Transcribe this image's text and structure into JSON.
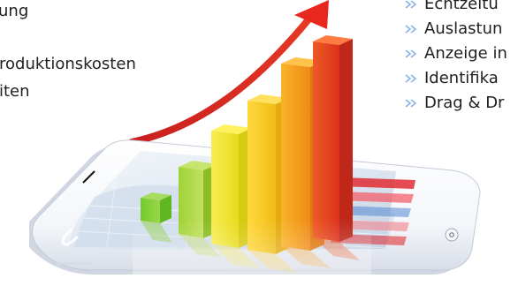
{
  "left_texts": [
    {
      "text": "ung"
    },
    {
      "text": "roduktionskosten"
    },
    {
      "text": "iten"
    }
  ],
  "right_list": [
    {
      "text": "Echtzeitü"
    },
    {
      "text": "Auslastun"
    },
    {
      "text": "Anzeige in"
    },
    {
      "text": "Identifika"
    },
    {
      "text": "Drag & Dr"
    }
  ],
  "icons": {
    "list_bullet": "double-arrow-icon",
    "trend_arrow": "rising-arrow-icon",
    "phone_button": "home-button-icon"
  },
  "colors": {
    "text": "#1f1f1f",
    "arrow_red": "#d9261c",
    "bullet_blue": "#8ab7e6",
    "bar_green": "#7ccc2c",
    "bar_yellow": "#f4e31a",
    "bar_orange": "#f39c18",
    "bar_red": "#e2381f"
  }
}
